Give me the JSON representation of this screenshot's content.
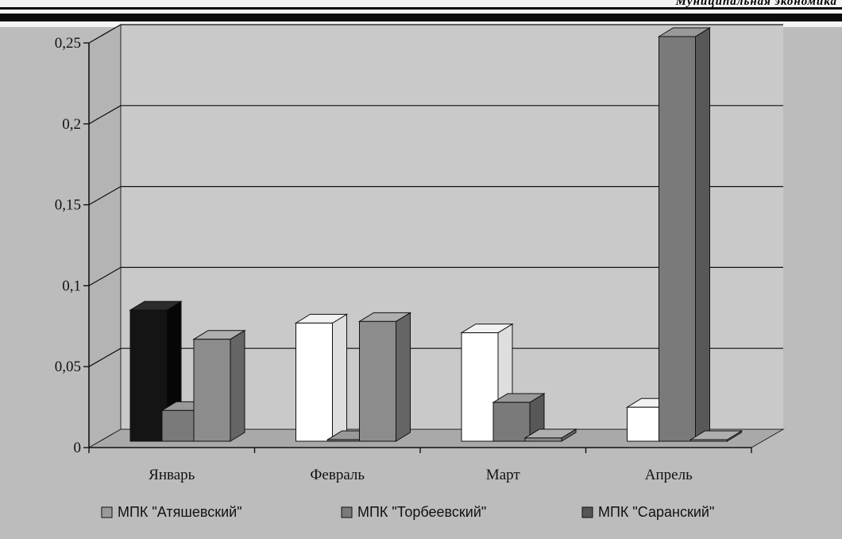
{
  "header": {
    "text": "Муниципальная экономика"
  },
  "chart_data": {
    "type": "bar",
    "categories": [
      "Январь",
      "Февраль",
      "Март",
      "Апрель"
    ],
    "series": [
      {
        "name": "МПК \"Атяшевский\"",
        "values": [
          0.081,
          0.073,
          0.067,
          0.021
        ],
        "color": "#141414"
      },
      {
        "name": "МПК \"Торбеевский\"",
        "values": [
          0.019,
          0.001,
          0.024,
          0.25
        ],
        "color": "#7a7a7a"
      },
      {
        "name": "МПК \"Саранский\"",
        "values": [
          0.063,
          0.074,
          0.002,
          0.0
        ],
        "color": "#8c8c8c"
      }
    ],
    "yticks": [
      "0",
      "0,05",
      "0,1",
      "0,15",
      "0,2",
      "0,25"
    ],
    "ylim": [
      0,
      0.25
    ],
    "grid": true,
    "legend_position": "bottom"
  },
  "colors": {
    "background": "#bcbcbc",
    "plot_back": "#c9c9c9",
    "grid": "#111111"
  }
}
